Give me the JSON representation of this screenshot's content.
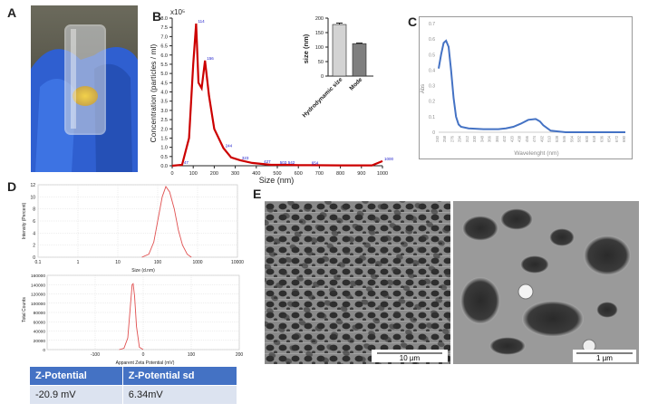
{
  "panels": {
    "a": "A",
    "b": "B",
    "c": "C",
    "d": "D",
    "e": "E"
  },
  "panel_b": {
    "exponent_label": "x10⁵",
    "ylabel": "Concentration (particles / ml)",
    "xlabel": "Size (nm)",
    "yticks": [
      "0.0",
      "0.5",
      "1.0",
      "1.5",
      "2.0",
      "2.5",
      "3.0",
      "3.5",
      "4.0",
      "4.5",
      "5.0",
      "5.5",
      "6.0",
      "6.5",
      "7.0",
      "7.5",
      "8.0"
    ],
    "xticks": [
      "0",
      "100",
      "200",
      "300",
      "400",
      "500",
      "600",
      "700",
      "800",
      "900",
      "1000"
    ],
    "peak_labels": [
      "47",
      "114",
      "156",
      "244",
      "323",
      "427",
      "503",
      "542",
      "654",
      "1000"
    ]
  },
  "inset_b": {
    "ylabel": "size (nm)",
    "yticks": [
      "0",
      "50",
      "100",
      "150",
      "200"
    ],
    "categories": [
      "Hydrodynamic size",
      "Mode"
    ]
  },
  "panel_c": {
    "ylabel": "Abs",
    "xlabel": "Wavelenght (nm)",
    "yticks": [
      "0",
      "0.1",
      "0.2",
      "0.3",
      "0.4",
      "0.5",
      "0.6",
      "0.7"
    ],
    "xticks": [
      "240",
      "258",
      "276",
      "294",
      "312",
      "330",
      "348",
      "366",
      "384",
      "402",
      "420",
      "438",
      "456",
      "474",
      "492",
      "510",
      "528",
      "546",
      "564",
      "582",
      "600",
      "618",
      "636",
      "654",
      "672",
      "690"
    ]
  },
  "panel_d1": {
    "ylabel": "Intensity (Percent)",
    "xlabel": "Size (d.nm)",
    "yticks": [
      "0",
      "2",
      "4",
      "6",
      "8",
      "10",
      "12"
    ],
    "xticks": [
      "0.1",
      "1",
      "10",
      "100",
      "1000",
      "10000"
    ]
  },
  "panel_d2": {
    "ylabel": "Total Counts",
    "xlabel": "Apparent Zeta Potential (mV)",
    "yticks": [
      "0",
      "20000",
      "40000",
      "60000",
      "80000",
      "100000",
      "120000",
      "140000",
      "160000"
    ],
    "xticks": [
      "-100",
      "0",
      "100",
      "200"
    ]
  },
  "zeta_table": {
    "headers": [
      "Z-Potential",
      "Z-Potential sd"
    ],
    "values": [
      "-20.9 mV",
      "6.34mV"
    ]
  },
  "sem": {
    "left_scale": "10 µm",
    "right_scale": "1 µm"
  },
  "chart_data": [
    {
      "type": "line",
      "title": "",
      "xlabel": "Size (nm)",
      "ylabel": "Concentration (particles / ml)",
      "xlim": [
        0,
        1000
      ],
      "ylim": [
        0,
        8.0
      ],
      "series": [
        {
          "x": [
            0,
            47,
            80,
            100,
            114,
            125,
            140,
            156,
            175,
            200,
            244,
            280,
            323,
            380,
            427,
            470,
            503,
            542,
            600,
            654,
            800,
            950,
            1000
          ],
          "y": [
            0,
            0.05,
            1.5,
            5.5,
            7.7,
            4.5,
            4.2,
            5.7,
            3.8,
            2.0,
            0.95,
            0.45,
            0.3,
            0.15,
            0.1,
            0.05,
            0.05,
            0.05,
            0.03,
            0.03,
            0.02,
            0.02,
            0.25
          ]
        }
      ]
    },
    {
      "type": "bar",
      "categories": [
        "Hydrodynamic size",
        "Mode"
      ],
      "values": [
        178,
        112
      ],
      "errors": [
        5,
        2
      ],
      "ylabel": "size (nm)",
      "ylim": [
        0,
        200
      ]
    },
    {
      "type": "line",
      "xlabel": "Wavelenght (nm)",
      "ylabel": "Abs",
      "ylim": [
        0,
        0.7
      ],
      "series": [
        {
          "x": [
            240,
            246,
            252,
            258,
            264,
            270,
            276,
            282,
            288,
            294,
            312,
            348,
            384,
            402,
            420,
            438,
            456,
            474,
            484,
            492,
            510,
            528,
            546,
            600,
            690
          ],
          "y": [
            0.41,
            0.5,
            0.575,
            0.59,
            0.55,
            0.4,
            0.22,
            0.1,
            0.05,
            0.035,
            0.025,
            0.02,
            0.02,
            0.025,
            0.035,
            0.055,
            0.08,
            0.085,
            0.07,
            0.045,
            0.01,
            0.005,
            0.0,
            0.0,
            0.0
          ]
        }
      ]
    },
    {
      "type": "line",
      "xlabel": "Size (d.nm)",
      "ylabel": "Intensity (Percent)",
      "xscale": "log",
      "xlim": [
        0.1,
        10000
      ],
      "ylim": [
        0,
        12
      ],
      "series": [
        {
          "x": [
            40,
            60,
            80,
            100,
            130,
            160,
            200,
            260,
            330,
            420,
            550,
            700
          ],
          "y": [
            0,
            0.5,
            2.5,
            6,
            10,
            11.7,
            10.8,
            8,
            4.5,
            2,
            0.5,
            0
          ]
        }
      ]
    },
    {
      "type": "line",
      "xlabel": "Apparent Zeta Potential (mV)",
      "ylabel": "Total Counts",
      "xlim": [
        -200,
        200
      ],
      "ylim": [
        0,
        160000
      ],
      "series": [
        {
          "x": [
            -50,
            -40,
            -32,
            -27,
            -23,
            -21,
            -18,
            -14,
            -8,
            0
          ],
          "y": [
            0,
            3000,
            25000,
            90000,
            140000,
            142000,
            115000,
            50000,
            5000,
            0
          ]
        }
      ]
    }
  ]
}
